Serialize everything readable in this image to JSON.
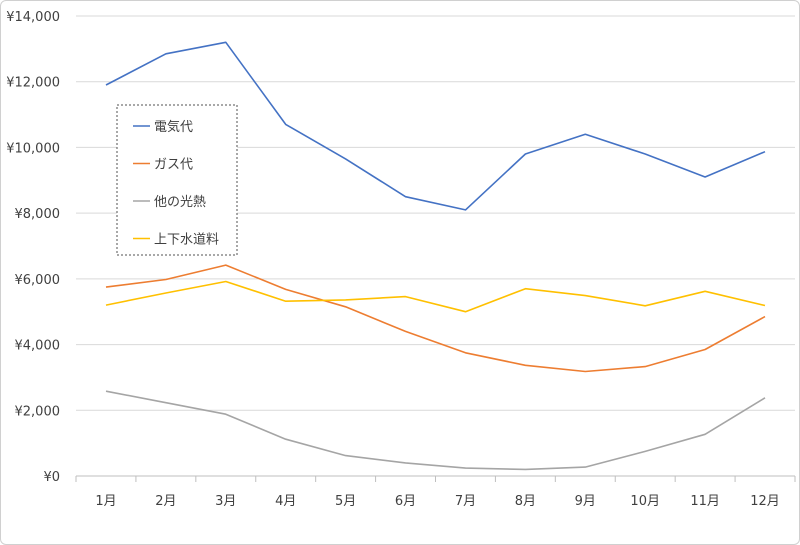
{
  "chart_data": {
    "type": "line",
    "title": "",
    "xlabel": "",
    "ylabel": "",
    "categories": [
      "1月",
      "2月",
      "3月",
      "4月",
      "5月",
      "6月",
      "7月",
      "8月",
      "9月",
      "10月",
      "11月",
      "12月"
    ],
    "ylim": [
      0,
      14000
    ],
    "yticks": [
      0,
      2000,
      4000,
      6000,
      8000,
      10000,
      12000,
      14000
    ],
    "ytick_labels": [
      "¥0",
      "¥2,000",
      "¥4,000",
      "¥6,000",
      "¥8,000",
      "¥10,000",
      "¥12,000",
      "¥14,000"
    ],
    "grid": true,
    "legend_position": "upper-left (inside plot)",
    "series": [
      {
        "name": "電気代",
        "color": "#4472C4",
        "values": [
          11900,
          12850,
          13200,
          10700,
          9650,
          8500,
          8100,
          9800,
          10400,
          9800,
          9100,
          9870
        ]
      },
      {
        "name": "ガス代",
        "color": "#ED7D31",
        "values": [
          5750,
          5980,
          6420,
          5680,
          5150,
          4400,
          3750,
          3370,
          3180,
          3330,
          3850,
          4850
        ]
      },
      {
        "name": "他の光熱",
        "color": "#A5A5A5",
        "values": [
          2580,
          2230,
          1880,
          1120,
          620,
          400,
          240,
          200,
          270,
          750,
          1270,
          2380
        ]
      },
      {
        "name": "上下水道料",
        "color": "#FFC000",
        "values": [
          5200,
          5570,
          5920,
          5320,
          5360,
          5460,
          5000,
          5700,
          5490,
          5180,
          5620,
          5190
        ]
      }
    ]
  }
}
